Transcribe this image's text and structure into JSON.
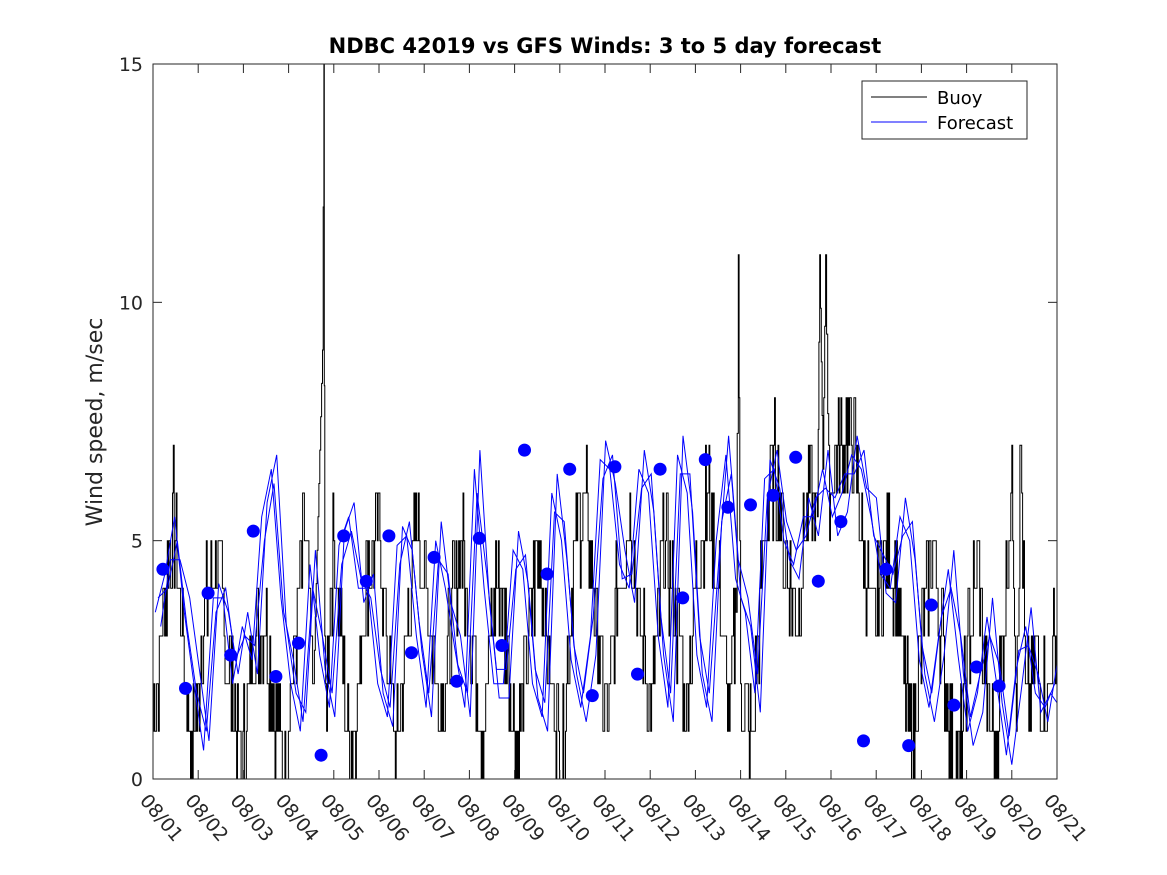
{
  "chart_data": {
    "type": "line",
    "title": "NDBC 42019 vs GFS Winds: 3 to 5 day forecast",
    "xlabel": "",
    "ylabel": "Wind speed, m/sec",
    "xlim": [
      0,
      20
    ],
    "ylim": [
      0,
      15
    ],
    "x_ticks": [
      0,
      1,
      2,
      3,
      4,
      5,
      6,
      7,
      8,
      9,
      10,
      11,
      12,
      13,
      14,
      15,
      16,
      17,
      18,
      19,
      20
    ],
    "x_tick_labels": [
      "08/01",
      "08/02",
      "08/03",
      "08/04",
      "08/05",
      "08/06",
      "08/07",
      "08/08",
      "08/09",
      "08/10",
      "08/11",
      "08/12",
      "08/13",
      "08/14",
      "08/15",
      "08/16",
      "08/17",
      "08/18",
      "08/19",
      "08/20",
      "08/21"
    ],
    "y_ticks": [
      0,
      5,
      10,
      15
    ],
    "y_tick_labels": [
      "0",
      "5",
      "10",
      "15"
    ],
    "legend": [
      "Buoy",
      "Forecast"
    ],
    "legend_position": "top-right",
    "series_colors": {
      "Buoy": "#000000",
      "Forecast": "#0000ff",
      "markers": "#0000ff"
    },
    "buoy_anchors": [
      [
        0.0,
        1.5
      ],
      [
        0.2,
        3.0
      ],
      [
        0.45,
        5.5
      ],
      [
        0.65,
        3.0
      ],
      [
        0.85,
        0.5
      ],
      [
        1.1,
        3.0
      ],
      [
        1.4,
        5.0
      ],
      [
        1.65,
        2.5
      ],
      [
        1.95,
        0.3
      ],
      [
        2.2,
        2.5
      ],
      [
        2.45,
        3.5
      ],
      [
        2.7,
        1.5
      ],
      [
        2.9,
        0.3
      ],
      [
        3.15,
        3.0
      ],
      [
        3.35,
        5.0
      ],
      [
        3.55,
        2.0
      ],
      [
        3.75,
        9.0
      ],
      [
        3.78,
        15.0
      ],
      [
        3.8,
        1.5
      ],
      [
        4.0,
        5.0
      ],
      [
        4.2,
        2.5
      ],
      [
        4.35,
        0.5
      ],
      [
        4.5,
        1.5
      ],
      [
        4.75,
        4.5
      ],
      [
        5.0,
        5.5
      ],
      [
        5.2,
        2.5
      ],
      [
        5.4,
        0.5
      ],
      [
        5.6,
        3.0
      ],
      [
        5.85,
        5.5
      ],
      [
        6.1,
        3.5
      ],
      [
        6.35,
        1.5
      ],
      [
        6.55,
        3.0
      ],
      [
        6.8,
        5.0
      ],
      [
        7.05,
        3.0
      ],
      [
        7.3,
        1.0
      ],
      [
        7.6,
        4.5
      ],
      [
        7.8,
        3.0
      ],
      [
        8.05,
        0.5
      ],
      [
        8.3,
        3.0
      ],
      [
        8.55,
        5.0
      ],
      [
        8.8,
        2.0
      ],
      [
        9.05,
        0.5
      ],
      [
        9.3,
        4.5
      ],
      [
        9.55,
        6.0
      ],
      [
        9.8,
        3.5
      ],
      [
        10.05,
        1.0
      ],
      [
        10.3,
        4.5
      ],
      [
        10.55,
        5.5
      ],
      [
        10.8,
        3.0
      ],
      [
        11.05,
        1.5
      ],
      [
        11.3,
        5.0
      ],
      [
        11.55,
        3.5
      ],
      [
        11.8,
        1.5
      ],
      [
        12.05,
        4.5
      ],
      [
        12.3,
        6.0
      ],
      [
        12.55,
        3.5
      ],
      [
        12.75,
        1.0
      ],
      [
        12.9,
        3.5
      ],
      [
        12.95,
        11.0
      ],
      [
        13.0,
        2.0
      ],
      [
        13.25,
        0.5
      ],
      [
        13.5,
        5.0
      ],
      [
        13.75,
        6.5
      ],
      [
        14.0,
        4.5
      ],
      [
        14.25,
        3.5
      ],
      [
        14.5,
        6.0
      ],
      [
        14.7,
        5.5
      ],
      [
        14.75,
        11.0
      ],
      [
        14.82,
        6.5
      ],
      [
        14.88,
        11.0
      ],
      [
        14.95,
        6.0
      ],
      [
        15.2,
        7.0
      ],
      [
        15.45,
        7.5
      ],
      [
        15.7,
        5.0
      ],
      [
        15.95,
        3.0
      ],
      [
        16.2,
        5.0
      ],
      [
        16.45,
        4.0
      ],
      [
        16.65,
        2.0
      ],
      [
        16.8,
        0.5
      ],
      [
        17.05,
        3.5
      ],
      [
        17.25,
        5.0
      ],
      [
        17.45,
        3.0
      ],
      [
        17.65,
        1.0
      ],
      [
        17.85,
        0.3
      ],
      [
        18.05,
        3.0
      ],
      [
        18.25,
        4.5
      ],
      [
        18.45,
        1.5
      ],
      [
        18.65,
        0.3
      ],
      [
        18.85,
        4.0
      ],
      [
        19.0,
        6.0
      ],
      [
        19.1,
        2.0
      ],
      [
        19.2,
        7.0
      ],
      [
        19.3,
        1.5
      ],
      [
        19.55,
        2.5
      ],
      [
        19.75,
        1.5
      ],
      [
        20.0,
        3.5
      ]
    ],
    "forecast_series": [
      {
        "name": "Forecast",
        "offset": 0.0,
        "y": [
          3.5,
          4.3,
          5.5,
          3.5,
          2.0,
          0.6,
          3.8,
          3.8,
          2.0,
          3.2,
          2.5,
          5.5,
          6.5,
          3.8,
          2.0,
          1.0,
          4.5,
          2.6,
          1.5,
          4.9,
          5.5,
          4.0,
          4.0,
          2.0,
          1.3,
          4.9,
          5.1,
          3.0,
          1.5,
          5.0,
          4.0,
          2.7,
          1.5,
          6.5,
          4.0,
          2.0,
          2.0,
          4.8,
          4.4,
          2.0,
          1.3,
          6.0,
          5.0,
          2.5,
          1.5,
          3.0,
          6.7,
          6.5,
          4.5,
          4.0,
          6.5,
          6.0,
          3.0,
          1.5,
          6.8,
          6.0,
          2.6,
          1.5,
          5.0,
          6.8,
          4.2,
          3.5,
          1.8,
          6.3,
          6.5,
          5.0,
          4.5,
          5.5,
          5.5,
          6.5,
          5.5,
          6.0,
          6.8,
          6.5,
          5.5,
          4.3,
          4.0,
          5.5,
          5.0,
          2.5,
          1.5,
          3.0,
          4.4,
          2.6,
          1.0,
          1.8,
          3.4,
          2.0,
          0.5,
          2.3,
          3.2,
          1.8,
          1.5,
          2.0
        ]
      },
      {
        "name": "Forecast",
        "offset": 0.06,
        "y": [
          3.8,
          4.0,
          5.0,
          3.2,
          1.8,
          1.0,
          3.5,
          4.0,
          2.5,
          3.0,
          2.8,
          5.0,
          6.2,
          3.5,
          2.5,
          1.2,
          4.0,
          3.0,
          1.8,
          4.5,
          5.2,
          4.2,
          3.8,
          2.3,
          1.5,
          4.5,
          5.4,
          3.3,
          1.8,
          4.6,
          4.3,
          2.4,
          1.8,
          6.0,
          4.3,
          2.3,
          2.3,
          4.4,
          4.7,
          2.3,
          1.6,
          5.6,
          5.4,
          2.8,
          1.8,
          3.4,
          6.3,
          6.8,
          4.2,
          4.3,
          6.1,
          6.4,
          3.4,
          1.8,
          6.4,
          6.4,
          3.0,
          1.8,
          4.6,
          7.2,
          4.6,
          3.8,
          2.2,
          5.9,
          6.9,
          5.4,
          4.8,
          5.1,
          5.9,
          6.1,
          5.9,
          6.4,
          6.4,
          6.9,
          5.1,
          4.7,
          4.3,
          5.1,
          5.4,
          2.8,
          1.8,
          3.4,
          4.0,
          3.0,
          1.3,
          2.2,
          3.0,
          2.4,
          0.9,
          2.7,
          2.8,
          2.2,
          1.2,
          2.4
        ]
      },
      {
        "name": "Forecast",
        "offset": 0.12,
        "y": [
          3.2,
          4.6,
          4.6,
          3.8,
          2.3,
          0.8,
          4.1,
          3.5,
          2.2,
          3.5,
          2.2,
          5.8,
          6.8,
          3.2,
          1.8,
          1.4,
          4.8,
          2.3,
          1.3,
          5.2,
          5.8,
          3.7,
          4.3,
          1.8,
          1.1,
          5.3,
          4.8,
          2.7,
          1.3,
          5.4,
          3.7,
          3.0,
          1.3,
          6.9,
          3.7,
          1.7,
          1.7,
          5.2,
          4.1,
          1.7,
          1.0,
          6.4,
          4.6,
          2.2,
          1.2,
          2.6,
          7.1,
          6.2,
          4.8,
          3.7,
          6.9,
          5.6,
          2.6,
          1.2,
          7.2,
          5.6,
          2.2,
          1.2,
          5.4,
          6.4,
          3.8,
          3.2,
          1.4,
          6.7,
          6.1,
          4.6,
          4.2,
          5.9,
          5.1,
          6.9,
          5.1,
          5.6,
          7.2,
          6.1,
          5.9,
          3.9,
          3.7,
          5.9,
          4.6,
          2.2,
          1.2,
          2.6,
          4.8,
          2.2,
          0.7,
          1.4,
          3.8,
          1.6,
          0.3,
          1.9,
          3.6,
          1.4,
          1.8,
          1.6
        ]
      }
    ],
    "forecast_dots": [
      [
        0.22,
        4.4
      ],
      [
        0.72,
        1.9
      ],
      [
        1.22,
        3.9
      ],
      [
        1.72,
        2.6
      ],
      [
        2.22,
        5.2
      ],
      [
        2.72,
        2.15
      ],
      [
        3.22,
        2.85
      ],
      [
        3.72,
        0.5
      ],
      [
        4.22,
        5.1
      ],
      [
        4.72,
        4.15
      ],
      [
        5.22,
        5.1
      ],
      [
        5.72,
        2.65
      ],
      [
        6.22,
        4.65
      ],
      [
        6.72,
        2.05
      ],
      [
        7.22,
        5.05
      ],
      [
        7.72,
        2.8
      ],
      [
        8.22,
        6.9
      ],
      [
        8.72,
        4.3
      ],
      [
        9.22,
        6.5
      ],
      [
        9.72,
        1.75
      ],
      [
        10.22,
        6.55
      ],
      [
        10.72,
        2.2
      ],
      [
        11.22,
        6.5
      ],
      [
        11.72,
        3.8
      ],
      [
        12.22,
        6.7
      ],
      [
        12.72,
        5.7
      ],
      [
        13.22,
        5.75
      ],
      [
        13.72,
        5.95
      ],
      [
        14.22,
        6.75
      ],
      [
        14.72,
        4.15
      ],
      [
        15.22,
        5.4
      ],
      [
        15.72,
        0.8
      ],
      [
        16.22,
        4.4
      ],
      [
        16.72,
        0.7
      ],
      [
        17.22,
        3.65
      ],
      [
        17.72,
        1.55
      ],
      [
        18.22,
        2.35
      ],
      [
        18.72,
        1.95
      ]
    ]
  }
}
